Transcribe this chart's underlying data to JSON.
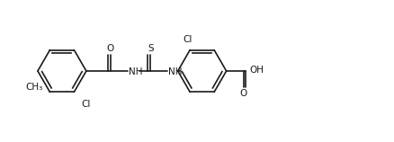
{
  "bg_color": "#ffffff",
  "line_color": "#1a1a1a",
  "line_width": 1.2,
  "font_size": 7.5,
  "fig_width": 4.38,
  "fig_height": 1.58,
  "dpi": 100,
  "xlim": [
    0,
    10
  ],
  "ylim": [
    0,
    3.6
  ]
}
